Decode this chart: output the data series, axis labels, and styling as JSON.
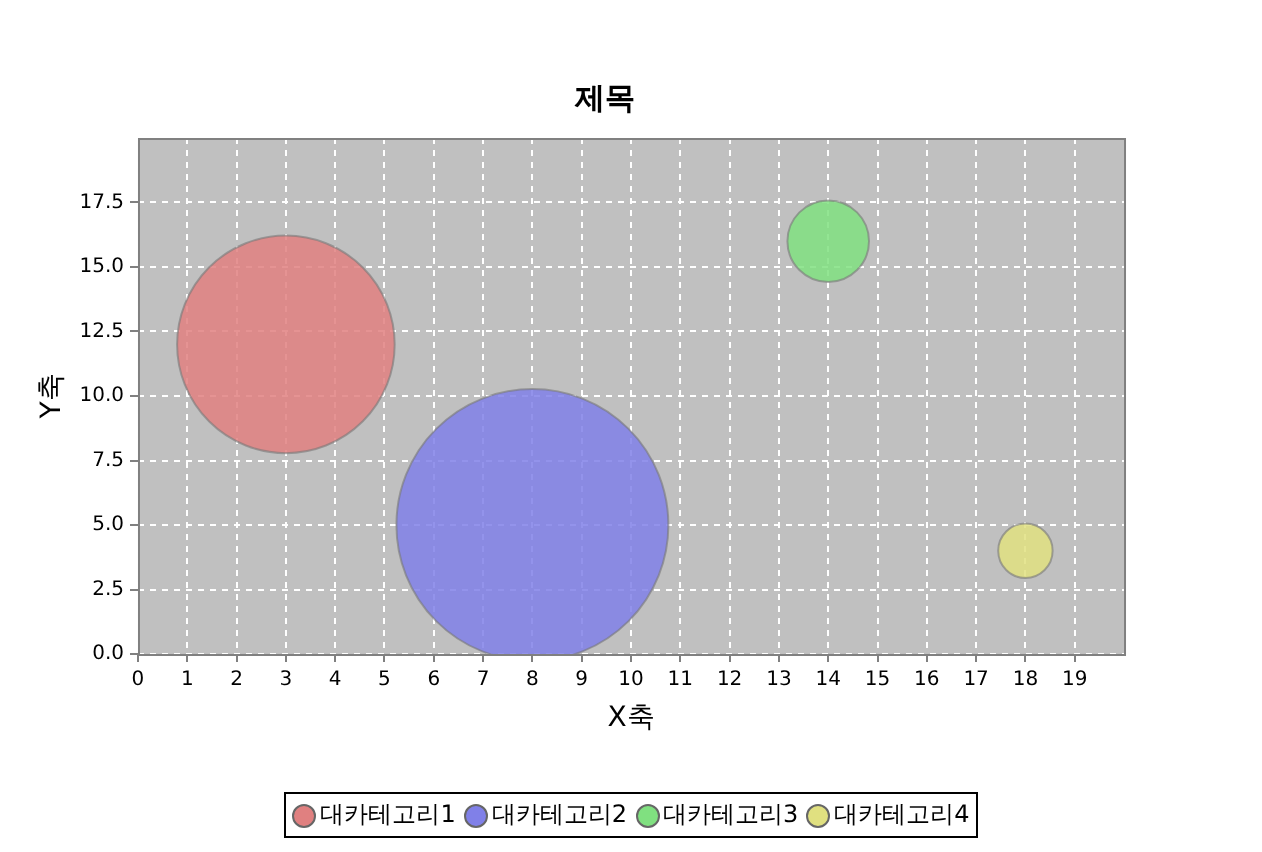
{
  "chart_data": {
    "type": "bubble",
    "title": "제목",
    "xlabel": "X축",
    "ylabel": "Y축",
    "series": [
      {
        "name": "대카테고리1",
        "color": "#e08080",
        "x": [
          3
        ],
        "values": [
          12
        ],
        "sizes": [
          0.64
        ]
      },
      {
        "name": "대카테고리2",
        "color": "#8080e8",
        "x": [
          8
        ],
        "values": [
          5
        ],
        "sizes": [
          1
        ]
      },
      {
        "name": "대카테고리3",
        "color": "#80e080",
        "x": [
          14
        ],
        "values": [
          16
        ],
        "sizes": [
          0.09
        ]
      },
      {
        "name": "대카테고리4",
        "color": "#e0e080",
        "x": [
          18
        ],
        "values": [
          4
        ],
        "sizes": [
          0.04
        ]
      }
    ],
    "xlim": [
      0,
      20
    ],
    "xticks": [
      0,
      1,
      2,
      3,
      4,
      5,
      6,
      7,
      8,
      9,
      10,
      11,
      12,
      13,
      14,
      15,
      16,
      17,
      18,
      19
    ],
    "ylim": [
      0,
      20
    ],
    "yticks": [
      {
        "value": 0,
        "label": "0.0"
      },
      {
        "value": 2.5,
        "label": "2.5"
      },
      {
        "value": 5,
        "label": "5.0"
      },
      {
        "value": 7.5,
        "label": "7.5"
      },
      {
        "value": 10,
        "label": "10.0"
      },
      {
        "value": 12.5,
        "label": "12.5"
      },
      {
        "value": 15,
        "label": "15.0"
      },
      {
        "value": 17.5,
        "label": "17.5"
      }
    ],
    "grid": true,
    "legend": "bottom"
  }
}
